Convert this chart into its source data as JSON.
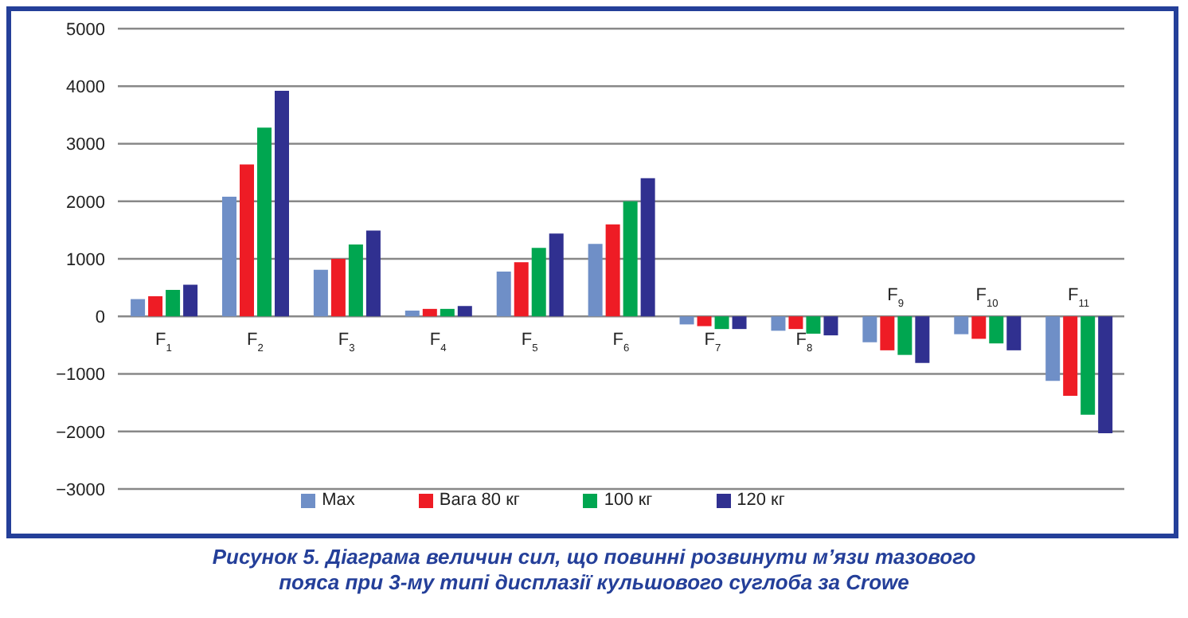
{
  "chart_data": {
    "type": "bar",
    "title": "Рисунок 5. Діаграма величин сил, що повинні розвинути м’язи тазового пояса при 3-му типі дисплазії кульшового суглоба за Crowe",
    "categories": [
      "F$_{1}$",
      "F$_{2}$",
      "F$_{3}$",
      "F$_{4}$",
      "F$_{5}$",
      "F$_{6}$",
      "F$_{7}$",
      "F$_{8}$",
      "F$_{9}$",
      "F$_{10}$",
      "F$_{11}$"
    ],
    "series": [
      {
        "name": "Max",
        "color": "#6f8fc7",
        "values": [
          300,
          2080,
          810,
          100,
          780,
          1260,
          -140,
          -250,
          -450,
          -310,
          -1120
        ]
      },
      {
        "name": "Вага 80 кг",
        "color": "#ee1c25",
        "values": [
          350,
          2640,
          1000,
          130,
          940,
          1600,
          -170,
          -220,
          -590,
          -390,
          -1380
        ]
      },
      {
        "name": "100 кг",
        "color": "#00a650",
        "values": [
          460,
          3280,
          1250,
          130,
          1190,
          2000,
          -220,
          -300,
          -670,
          -470,
          -1710
        ]
      },
      {
        "name": "120 кг",
        "color": "#303090",
        "values": [
          550,
          3920,
          1490,
          180,
          1440,
          2400,
          -220,
          -330,
          -810,
          -590,
          -2030
        ]
      }
    ],
    "ylim": [
      -3000,
      5000
    ],
    "yticks": [
      -3000,
      -2000,
      -1000,
      0,
      1000,
      2000,
      3000,
      4000,
      5000
    ],
    "grid": "y",
    "legend": "bottom"
  }
}
